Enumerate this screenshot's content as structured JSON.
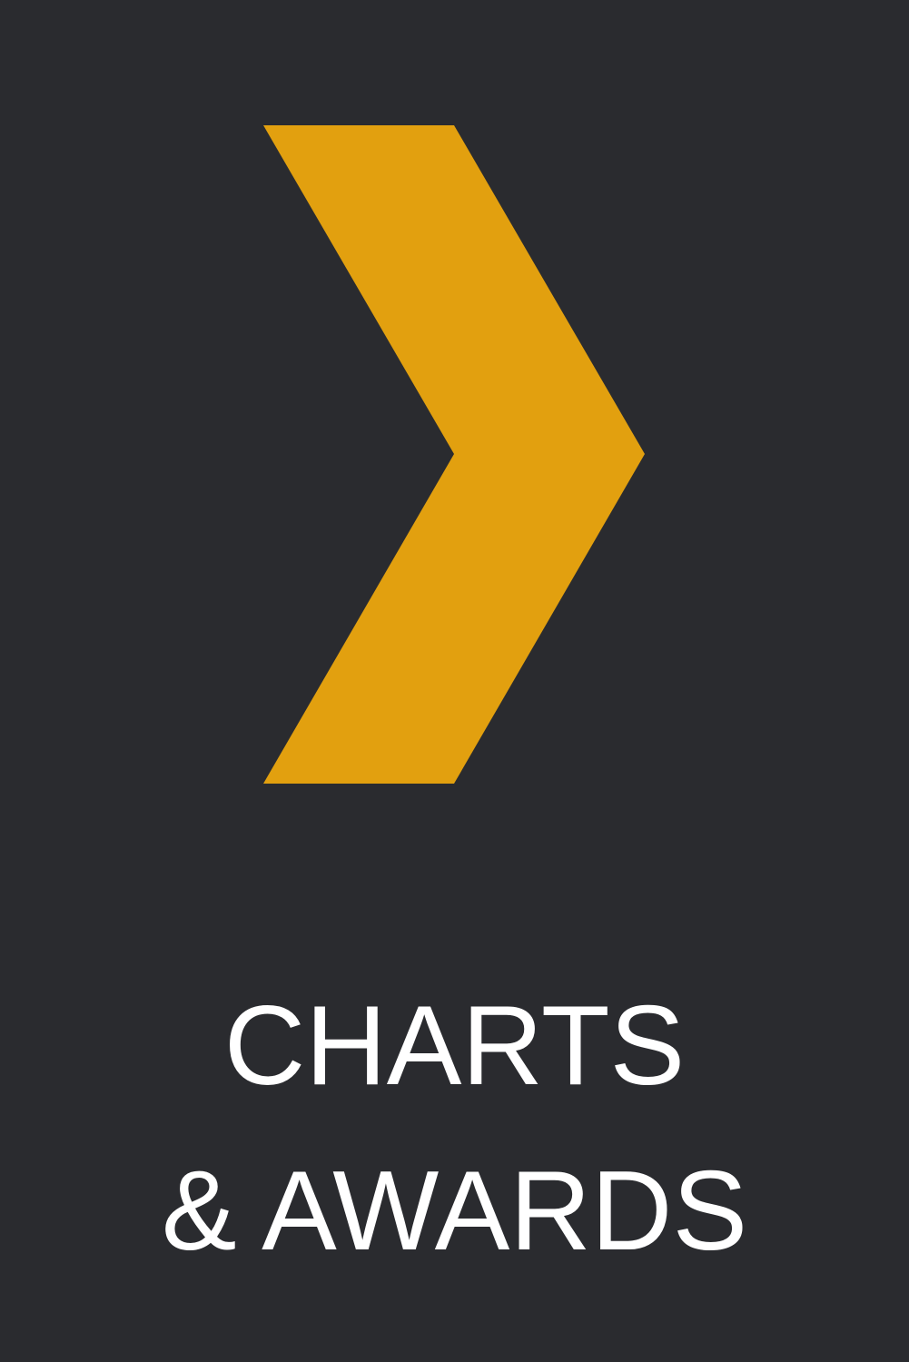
{
  "tile": {
    "background_color": "#2a2b2f",
    "accent_color": "#e2a00f",
    "text_color": "#ffffff",
    "icon": "chevron-right-icon",
    "caption_line1": "CHARTS",
    "caption_line2": "& AWARDS"
  }
}
